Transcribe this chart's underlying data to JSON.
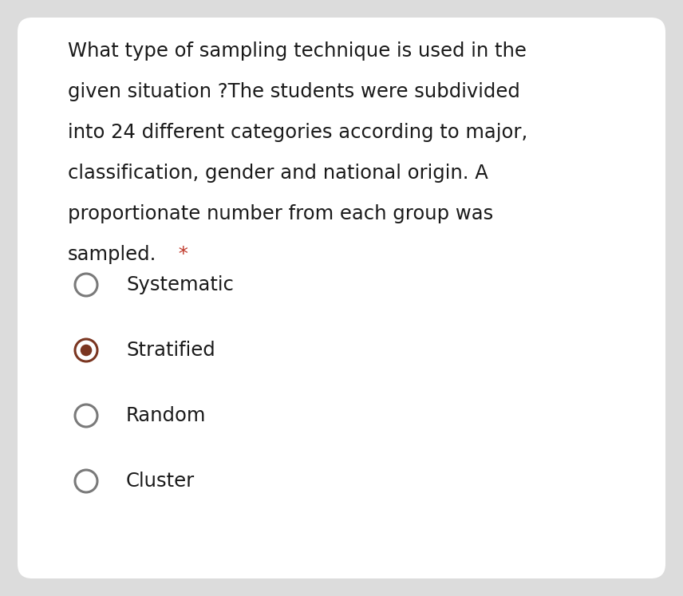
{
  "background_outer": "#dcdcdc",
  "background_card": "#ffffff",
  "question_text_lines": [
    "What type of sampling technique is used in the",
    "given situation ?The students were subdivided",
    "into 24 different categories according to major,",
    "classification, gender and national origin. A",
    "proportionate number from each group was",
    "sampled."
  ],
  "asterisk": " *",
  "asterisk_color": "#c0392b",
  "question_color": "#1a1a1a",
  "question_fontsize": 17.5,
  "options": [
    "Systematic",
    "Stratified",
    "Random",
    "Cluster"
  ],
  "selected_index": 1,
  "option_color": "#1a1a1a",
  "option_fontsize": 17.5,
  "circle_edge_color_unselected": "#7a7a7a",
  "circle_edge_color_selected": "#7B3621",
  "circle_fill_inner_selected": "#7B3621",
  "circle_fill_unselected": "#ffffff",
  "circle_linewidth_unselected": 2.2,
  "circle_linewidth_selected": 2.2,
  "inner_dot_color": "#7B3621"
}
